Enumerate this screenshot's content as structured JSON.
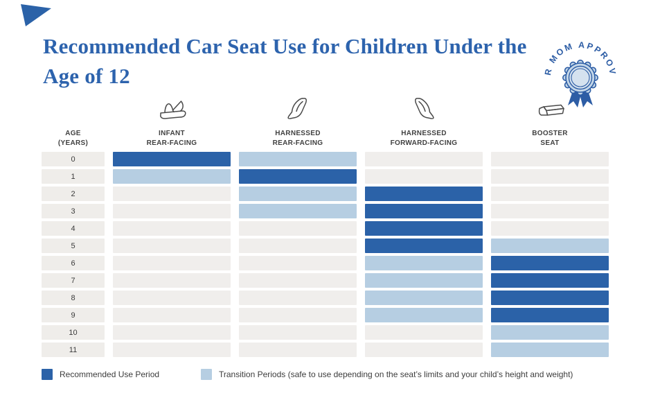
{
  "title": "Recommended Car Seat Use for Children Under the Age of 12",
  "badge": {
    "text": "CAR MOM APPROVED"
  },
  "colors": {
    "title_blue": "#2d63ad",
    "recommended_bar": "#2b62a8",
    "transition_bar": "#b6cee2",
    "empty_cell": "#f0eeec",
    "age_cell": "#efedea",
    "header_text": "#414141",
    "badge_blue": "#2d5da5",
    "badge_rosette_fill": "#c3d6e8"
  },
  "table": {
    "age_header": "AGE\n(YEARS)",
    "columns": [
      {
        "label": "INFANT\nREAR-FACING",
        "icon": "infant-carrier-icon"
      },
      {
        "label": "HARNESSED\nREAR-FACING",
        "icon": "rear-facing-seat-icon"
      },
      {
        "label": "HARNESSED\nFORWARD-FACING",
        "icon": "forward-facing-seat-icon"
      },
      {
        "label": "BOOSTER\nSEAT",
        "icon": "booster-seat-icon"
      }
    ]
  },
  "chart_data": {
    "type": "table",
    "title": "Recommended Car Seat Use for Children Under the Age of 12",
    "row_axis_label": "Age (years)",
    "ages": [
      0,
      1,
      2,
      3,
      4,
      5,
      6,
      7,
      8,
      9,
      10,
      11
    ],
    "columns": [
      "Infant Rear-Facing",
      "Harnessed Rear-Facing",
      "Harnessed Forward-Facing",
      "Booster Seat"
    ],
    "cell_states": [
      "recommended",
      "transition",
      "none"
    ],
    "matrix": [
      [
        "recommended",
        "transition",
        "none",
        "none"
      ],
      [
        "transition",
        "recommended",
        "none",
        "none"
      ],
      [
        "none",
        "transition",
        "recommended",
        "none"
      ],
      [
        "none",
        "transition",
        "recommended",
        "none"
      ],
      [
        "none",
        "none",
        "recommended",
        "none"
      ],
      [
        "none",
        "none",
        "recommended",
        "transition"
      ],
      [
        "none",
        "none",
        "transition",
        "recommended"
      ],
      [
        "none",
        "none",
        "transition",
        "recommended"
      ],
      [
        "none",
        "none",
        "transition",
        "recommended"
      ],
      [
        "none",
        "none",
        "transition",
        "recommended"
      ],
      [
        "none",
        "none",
        "none",
        "transition"
      ],
      [
        "none",
        "none",
        "none",
        "transition"
      ]
    ],
    "legend_position": "bottom"
  },
  "legend": {
    "recommended_label": "Recommended Use Period",
    "transition_label": "Transition Periods (safe to use depending on the seat’s limits and your child’s height and weight)"
  }
}
